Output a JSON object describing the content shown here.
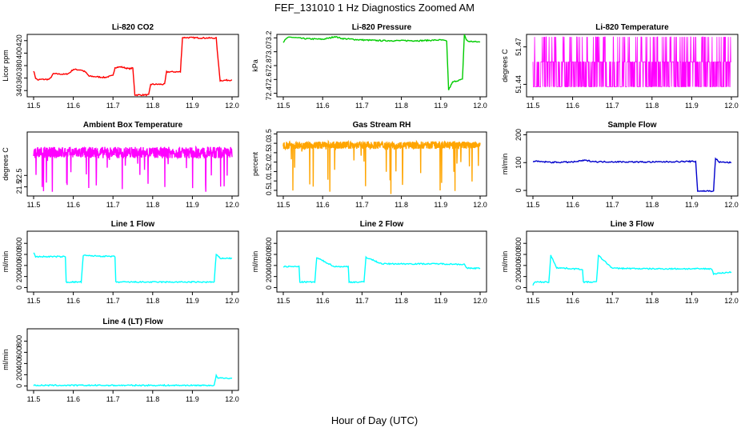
{
  "page": {
    "title": "FEF_131010  1 Hz Diagnostics Zoomed AM",
    "xlabel": "Hour of Day (UTC)"
  },
  "chart_data": [
    {
      "type": "line",
      "title": "Li-820 CO2",
      "ylabel": "Licor ppm",
      "color": "#ff0000",
      "xlim": [
        11.5,
        12.0
      ],
      "ylim": [
        330,
        430
      ],
      "yticks": [
        "340",
        "360",
        "380",
        "400",
        "420"
      ],
      "xticks": [
        "11.5",
        "11.6",
        "11.7",
        "11.8",
        "11.9",
        "12.0"
      ],
      "x": [
        11.5,
        11.505,
        11.51,
        11.52,
        11.54,
        11.55,
        11.58,
        11.59,
        11.6,
        11.62,
        11.63,
        11.64,
        11.66,
        11.68,
        11.7,
        11.705,
        11.72,
        11.74,
        11.75,
        11.755,
        11.79,
        11.795,
        11.83,
        11.835,
        11.87,
        11.875,
        11.96,
        11.965,
        11.97,
        12.0
      ],
      "y": [
        372,
        360,
        357,
        358,
        358,
        367,
        366,
        368,
        374,
        373,
        370,
        363,
        362,
        361,
        364,
        377,
        378,
        375,
        376,
        333,
        333,
        350,
        350,
        370,
        370,
        425,
        424,
        388,
        356,
        357
      ]
    },
    {
      "type": "line",
      "title": "Li-820 Pressure",
      "ylabel": "kPa",
      "color": "#00cc00",
      "xlim": [
        11.5,
        12.0
      ],
      "ylim": [
        72.35,
        73.25
      ],
      "yticks": [
        "72.4",
        "72.6",
        "72.8",
        "73.0",
        "73.2"
      ],
      "xticks": [
        "11.5",
        "11.6",
        "11.7",
        "11.8",
        "11.9",
        "12.0"
      ],
      "x": [
        11.5,
        11.51,
        11.52,
        11.55,
        11.6,
        11.62,
        11.63,
        11.65,
        11.7,
        11.75,
        11.8,
        11.85,
        11.9,
        11.91,
        11.915,
        11.92,
        11.93,
        11.94,
        11.955,
        11.96,
        11.965,
        11.97,
        12.0
      ],
      "y": [
        73.14,
        73.2,
        73.21,
        73.19,
        73.18,
        73.2,
        73.22,
        73.19,
        73.17,
        73.16,
        73.16,
        73.16,
        73.17,
        73.16,
        73.15,
        72.45,
        72.56,
        72.58,
        72.6,
        73.25,
        73.17,
        73.15,
        73.14
      ]
    },
    {
      "type": "line",
      "title": "Li-820 Temperature",
      "ylabel": "degrees C",
      "color": "#ff00ff",
      "xlim": [
        11.5,
        12.0
      ],
      "ylim": [
        51.43,
        51.48
      ],
      "yticks": [
        "51.44",
        "51.47"
      ],
      "xticks": [
        "11.5",
        "11.6",
        "11.7",
        "11.8",
        "11.9",
        "12.0"
      ],
      "levels": [
        51.438,
        51.458,
        51.478
      ]
    },
    {
      "type": "line",
      "title": "Ambient Box Temperature",
      "ylabel": "degrees C",
      "color": "#ff00ff",
      "xlim": [
        11.5,
        12.0
      ],
      "ylim": [
        20.7,
        26.3
      ],
      "yticks": [
        "21.5",
        "22.5"
      ],
      "xticks": [
        "11.5",
        "11.6",
        "11.7",
        "11.8",
        "11.9",
        "12.0"
      ],
      "baseline": 24.5,
      "noise": 1.0,
      "min": 21.0
    },
    {
      "type": "line",
      "title": "Gas Stream RH",
      "ylabel": "percent",
      "color": "#ffa500",
      "xlim": [
        11.5,
        12.0
      ],
      "ylim": [
        0.2,
        3.6
      ],
      "yticks": [
        "0.5",
        "1.0",
        "1.5",
        "2.0",
        "2.5",
        "3.0",
        "3.5"
      ],
      "xticks": [
        "11.5",
        "11.6",
        "11.7",
        "11.8",
        "11.9",
        "12.0"
      ],
      "baseline": 2.9,
      "noise": 0.4,
      "min": 0.3
    },
    {
      "type": "line",
      "title": "Sample Flow",
      "ylabel": "ml/min",
      "color": "#0000cc",
      "xlim": [
        11.5,
        12.0
      ],
      "ylim": [
        -20,
        210
      ],
      "yticks": [
        "0",
        "100",
        "200"
      ],
      "xticks": [
        "11.5",
        "11.6",
        "11.7",
        "11.8",
        "11.9",
        "12.0"
      ],
      "x": [
        11.5,
        11.55,
        11.6,
        11.63,
        11.66,
        11.7,
        11.8,
        11.88,
        11.91,
        11.915,
        11.955,
        11.96,
        11.97,
        12.0
      ],
      "y": [
        105,
        101,
        102,
        108,
        103,
        103,
        102,
        104,
        104,
        -2,
        -2,
        115,
        102,
        100
      ]
    },
    {
      "type": "line",
      "title": "Line 1 Flow",
      "ylabel": "ml/min",
      "color": "#00ffff",
      "xlim": [
        11.5,
        12.0
      ],
      "ylim": [
        -80,
        1020
      ],
      "yticks": [
        "0",
        "200",
        "400",
        "600",
        "800"
      ],
      "xticks": [
        "11.5",
        "11.6",
        "11.7",
        "11.8",
        "11.9",
        "12.0"
      ],
      "x": [
        11.5,
        11.505,
        11.58,
        11.582,
        11.62,
        11.625,
        11.705,
        11.707,
        11.955,
        11.96,
        11.97,
        12.0
      ],
      "y": [
        630,
        560,
        560,
        100,
        100,
        580,
        560,
        100,
        100,
        600,
        530,
        530
      ]
    },
    {
      "type": "line",
      "title": "Line 2 Flow",
      "ylabel": "ml/min",
      "color": "#00ffff",
      "xlim": [
        11.5,
        12.0
      ],
      "ylim": [
        -80,
        1020
      ],
      "yticks": [
        "0",
        "200",
        "400",
        "600",
        "800"
      ],
      "xticks": [
        "11.5",
        "11.6",
        "11.7",
        "11.8",
        "11.9",
        "12.0"
      ],
      "x": [
        11.5,
        11.54,
        11.542,
        11.58,
        11.585,
        11.63,
        11.665,
        11.667,
        11.705,
        11.71,
        11.75,
        11.9,
        11.96,
        11.965,
        12.0
      ],
      "y": [
        380,
        380,
        100,
        100,
        540,
        380,
        380,
        100,
        100,
        550,
        430,
        430,
        420,
        350,
        350
      ]
    },
    {
      "type": "line",
      "title": "Line 3 Flow",
      "ylabel": "ml/min",
      "color": "#00ffff",
      "xlim": [
        11.5,
        12.0
      ],
      "ylim": [
        -80,
        1020
      ],
      "yticks": [
        "0",
        "200",
        "400",
        "600",
        "800"
      ],
      "xticks": [
        "11.5",
        "11.6",
        "11.7",
        "11.8",
        "11.9",
        "12.0"
      ],
      "x": [
        11.5,
        11.505,
        11.54,
        11.545,
        11.56,
        11.625,
        11.627,
        11.66,
        11.665,
        11.7,
        11.8,
        11.9,
        11.95,
        11.955,
        12.0
      ],
      "y": [
        50,
        100,
        100,
        580,
        360,
        330,
        100,
        100,
        580,
        350,
        340,
        340,
        340,
        250,
        280
      ]
    },
    {
      "type": "line",
      "title": "Line 4 (LT) Flow",
      "ylabel": "ml/min",
      "color": "#00ffff",
      "xlim": [
        11.5,
        12.0
      ],
      "ylim": [
        -80,
        1020
      ],
      "yticks": [
        "0",
        "200",
        "400",
        "600",
        "800"
      ],
      "xticks": [
        "11.5",
        "11.6",
        "11.7",
        "11.8",
        "11.9",
        "12.0"
      ],
      "x": [
        11.5,
        11.955,
        11.96,
        11.965,
        12.0
      ],
      "y": [
        10,
        10,
        180,
        140,
        135
      ]
    }
  ]
}
